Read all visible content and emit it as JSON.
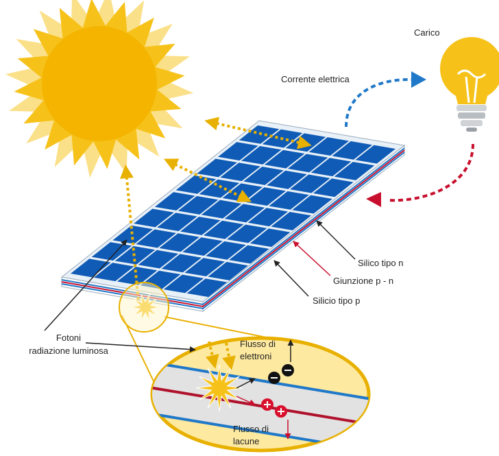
{
  "labels": {
    "load": "Carico",
    "current": "Corrente elettrica",
    "n_type": "Silico tipo n",
    "junction": "Giunzione p - n",
    "p_type": "Silicio tipo p",
    "photons": [
      "Fotoni",
      "radiazione luminosa"
    ],
    "electron_flow": [
      "Flusso di",
      "elettroni"
    ],
    "hole_flow": [
      "Flusso di",
      "lacune"
    ]
  }
}
